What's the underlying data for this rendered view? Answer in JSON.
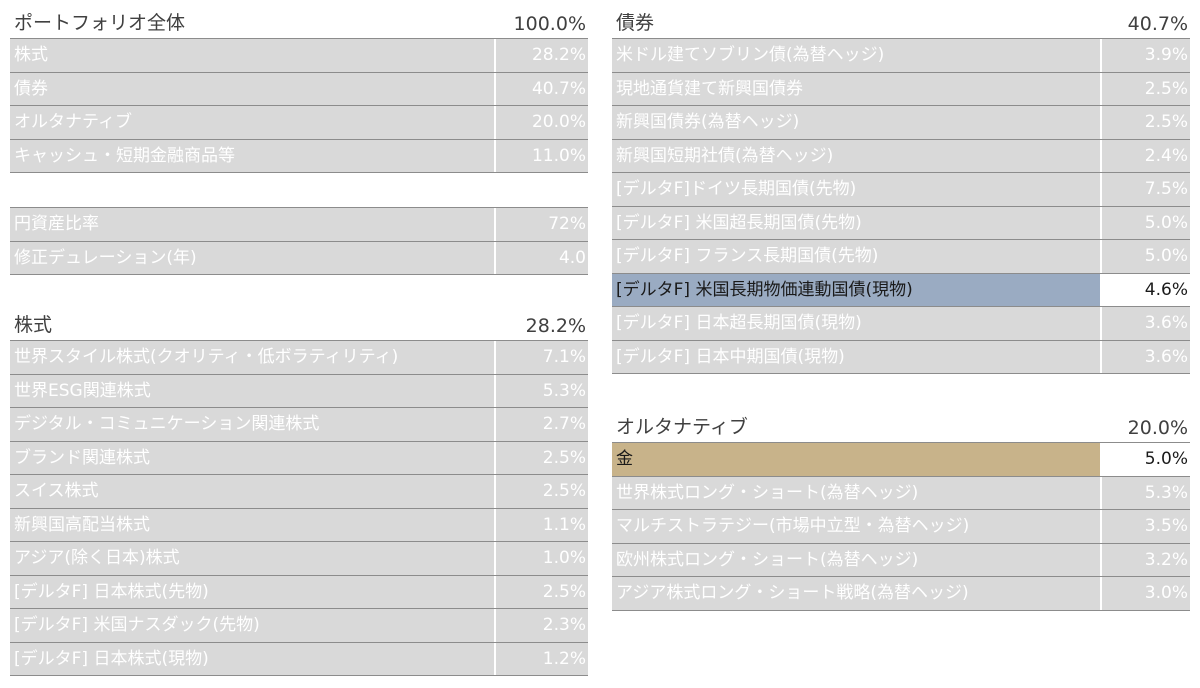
{
  "portfolio": {
    "title": "ポートフォリオ全体",
    "total": "100.0%",
    "rows": [
      {
        "label": "株式",
        "value": "28.2%"
      },
      {
        "label": "債券",
        "value": "40.7%"
      },
      {
        "label": "オルタナティブ",
        "value": "20.0%"
      },
      {
        "label": "キャッシュ・短期金融商品等",
        "value": "11.0%"
      }
    ]
  },
  "metrics": {
    "rows": [
      {
        "label": "円資産比率",
        "value": "72%"
      },
      {
        "label": "修正デュレーション(年)",
        "value": "4.0"
      }
    ]
  },
  "equity": {
    "title": "株式",
    "total": "28.2%",
    "rows": [
      {
        "label": "世界スタイル株式(クオリティ・低ボラティリティ)",
        "value": "7.1%"
      },
      {
        "label": "世界ESG関連株式",
        "value": "5.3%"
      },
      {
        "label": "デジタル・コミュニケーション関連株式",
        "value": "2.7%"
      },
      {
        "label": "ブランド関連株式",
        "value": "2.5%"
      },
      {
        "label": "スイス株式",
        "value": "2.5%"
      },
      {
        "label": "新興国高配当株式",
        "value": "1.1%"
      },
      {
        "label": "アジア(除く日本)株式",
        "value": "1.0%"
      },
      {
        "label": "[デルタF] 日本株式(先物)",
        "value": "2.5%"
      },
      {
        "label": "[デルタF] 米国ナスダック(先物)",
        "value": "2.3%"
      },
      {
        "label": "[デルタF] 日本株式(現物)",
        "value": "1.2%"
      }
    ]
  },
  "bonds": {
    "title": "債券",
    "total": "40.7%",
    "rows": [
      {
        "label": "米ドル建てソブリン債(為替ヘッジ)",
        "value": "3.9%"
      },
      {
        "label": "現地通貨建て新興国債券",
        "value": "2.5%"
      },
      {
        "label": "新興国債券(為替ヘッジ)",
        "value": "2.5%"
      },
      {
        "label": "新興国短期社債(為替ヘッジ)",
        "value": "2.4%"
      },
      {
        "label": "[デルタF]ドイツ長期国債(先物)",
        "value": "7.5%"
      },
      {
        "label": "[デルタF] 米国超長期国債(先物)",
        "value": "5.0%"
      },
      {
        "label": "[デルタF] フランス長期国債(先物)",
        "value": "5.0%"
      },
      {
        "label": "[デルタF] 米国長期物価連動国債(現物)",
        "value": "4.6%"
      },
      {
        "label": "[デルタF] 日本超長期国債(現物)",
        "value": "3.6%"
      },
      {
        "label": "[デルタF] 日本中期国債(現物)",
        "value": "3.6%"
      }
    ]
  },
  "alternatives": {
    "title": "オルタナティブ",
    "total": "20.0%",
    "rows": [
      {
        "label": "金",
        "value": "5.0%"
      },
      {
        "label": "世界株式ロング・ショート(為替ヘッジ)",
        "value": "5.3%"
      },
      {
        "label": "マルチストラテジー(市場中立型・為替ヘッジ)",
        "value": "3.5%"
      },
      {
        "label": "欧州株式ロング・ショート(為替ヘッジ)",
        "value": "3.2%"
      },
      {
        "label": "アジア株式ロング・ショート戦略(為替ヘッジ)",
        "value": "3.0%"
      }
    ]
  },
  "colors": {
    "row_fill": "#d9d9d9",
    "highlight_blue": "#9aabc2",
    "highlight_gold": "#c8b38a"
  }
}
